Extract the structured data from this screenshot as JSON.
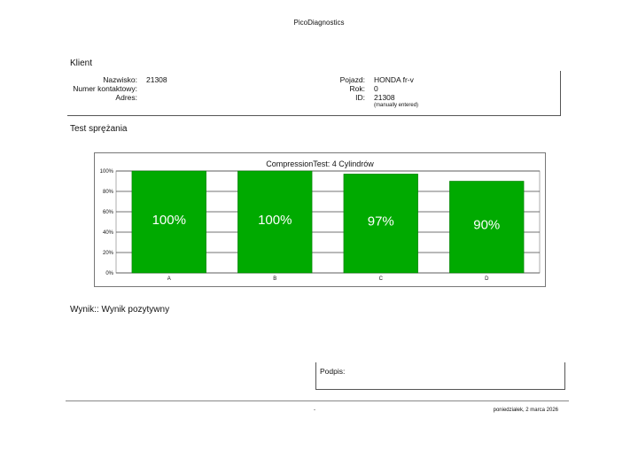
{
  "header": {
    "app_title": "PicoDiagnostics"
  },
  "client": {
    "heading": "Klient",
    "fields": [
      {
        "label": "Nazwisko:",
        "value": "21308"
      },
      {
        "label": "Numer kontaktowy:",
        "value": ""
      },
      {
        "label": "Adres:",
        "value": ""
      }
    ],
    "vehicle_fields": [
      {
        "label": "Pojazd:",
        "value": "HONDA fr-v"
      },
      {
        "label": "Rok:",
        "value": "0"
      },
      {
        "label": "ID:",
        "value": "21308"
      }
    ],
    "id_note": "(manually entered)"
  },
  "test": {
    "heading": "Test sprężania"
  },
  "chart_data": {
    "type": "bar",
    "title": "CompressionTest: 4 Cylindrów",
    "categories": [
      "A",
      "B",
      "C",
      "D"
    ],
    "values": [
      100,
      100,
      97,
      90
    ],
    "data_labels": [
      "100%",
      "100%",
      "97%",
      "90%"
    ],
    "y_ticks": [
      0,
      20,
      40,
      60,
      80,
      100
    ],
    "y_tick_labels": [
      "0%",
      "20%",
      "40%",
      "60%",
      "80%",
      "100%"
    ],
    "ylim": [
      0,
      100
    ],
    "grid": true,
    "colors": {
      "bar": "#00aa00",
      "bar_edge": "#007a00"
    }
  },
  "result": {
    "text": "Wynik:: Wynik pozytywny"
  },
  "signature": {
    "label": "Podpis:"
  },
  "footer": {
    "center": "-",
    "date": "poniedziałek, 2 marca 2026"
  }
}
